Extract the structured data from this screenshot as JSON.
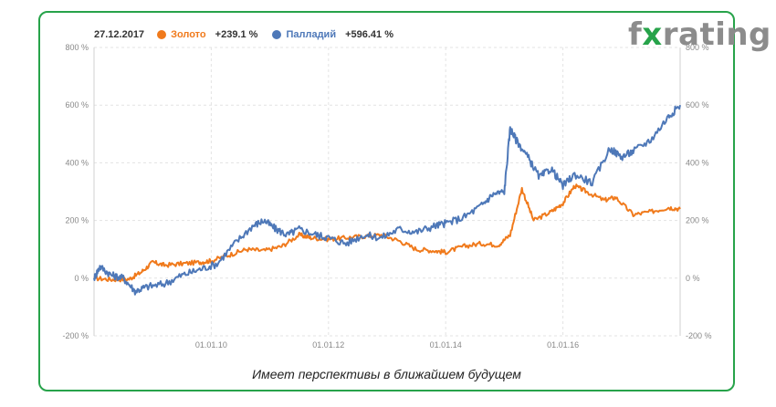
{
  "logo": {
    "pre": "f",
    "x": "x",
    "post": "rating"
  },
  "legend": {
    "date": "27.12.2017",
    "series": [
      {
        "name": "Золото",
        "value": "+239.1 %",
        "color": "#f07a1c"
      },
      {
        "name": "Палладий",
        "value": "+596.41 %",
        "color": "#4e78b8"
      }
    ]
  },
  "caption": "Имеет перспективы в ближайшем будущем",
  "chart_data": {
    "type": "line",
    "x_ticks": [
      "01.01.10",
      "01.01.12",
      "01.01.14",
      "01.01.16"
    ],
    "y_ticks": [
      "800 %",
      "600 %",
      "400 %",
      "200 %",
      "0 %",
      "-200 %"
    ],
    "ylim": [
      -200,
      800
    ],
    "xlim": [
      2008.0,
      2018.0
    ],
    "grid": true,
    "series": [
      {
        "name": "Золото",
        "color": "#f07a1c",
        "x": [
          2008.0,
          2008.3,
          2008.6,
          2008.8,
          2009.0,
          2009.2,
          2009.5,
          2009.8,
          2010.0,
          2010.3,
          2010.6,
          2010.9,
          2011.2,
          2011.5,
          2011.7,
          2012.0,
          2012.3,
          2012.6,
          2012.9,
          2013.2,
          2013.5,
          2013.8,
          2014.0,
          2014.3,
          2014.6,
          2014.9,
          2015.1,
          2015.3,
          2015.5,
          2015.8,
          2016.0,
          2016.2,
          2016.4,
          2016.7,
          2016.9,
          2017.2,
          2017.5,
          2017.8,
          2018.0
        ],
        "y": [
          0,
          -5,
          -3,
          20,
          55,
          45,
          50,
          55,
          60,
          80,
          100,
          95,
          110,
          150,
          140,
          135,
          140,
          145,
          150,
          130,
          100,
          95,
          90,
          110,
          120,
          115,
          150,
          310,
          200,
          230,
          260,
          320,
          300,
          270,
          280,
          220,
          230,
          245,
          240
        ]
      },
      {
        "name": "Палладий",
        "color": "#4e78b8",
        "x": [
          2008.0,
          2008.1,
          2008.3,
          2008.5,
          2008.7,
          2008.9,
          2009.2,
          2009.5,
          2009.8,
          2010.1,
          2010.4,
          2010.7,
          2010.9,
          2011.1,
          2011.3,
          2011.5,
          2011.8,
          2012.0,
          2012.3,
          2012.6,
          2012.9,
          2013.2,
          2013.5,
          2013.8,
          2014.0,
          2014.3,
          2014.6,
          2014.8,
          2015.0,
          2015.1,
          2015.2,
          2015.4,
          2015.6,
          2015.8,
          2016.0,
          2016.2,
          2016.5,
          2016.8,
          2017.0,
          2017.2,
          2017.5,
          2017.8,
          2018.0
        ],
        "y": [
          0,
          40,
          10,
          0,
          -45,
          -30,
          -20,
          10,
          30,
          50,
          120,
          180,
          200,
          170,
          150,
          170,
          150,
          140,
          120,
          150,
          140,
          170,
          160,
          180,
          190,
          210,
          250,
          290,
          300,
          520,
          480,
          420,
          350,
          380,
          320,
          360,
          330,
          450,
          420,
          440,
          480,
          560,
          600
        ]
      }
    ]
  }
}
